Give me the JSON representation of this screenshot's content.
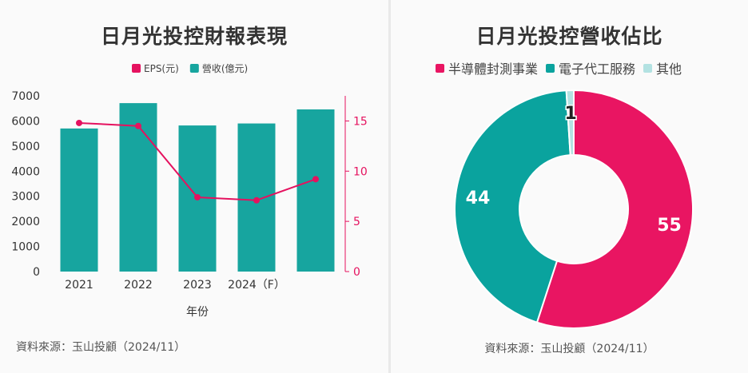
{
  "left_chart": {
    "title": "日月光投控財報表現",
    "source": "資料來源：玉山投顧（2024/11）"
  },
  "right_chart": {
    "title": "日月光投控營收佔比",
    "source": "資料來源：玉山投顧（2024/11）"
  },
  "colors": {
    "eps": "#e5125f",
    "revenue": "#17a59f",
    "pie": [
      "#e91562",
      "#0aa39e",
      "#b3e2e2"
    ]
  },
  "chart_data": [
    {
      "type": "bar",
      "title": "日月光投控財報表現",
      "categories": [
        "2021",
        "2022",
        "2023",
        "2024（F）",
        ""
      ],
      "xlabel": "年份",
      "ylabel": "",
      "ylim": [
        0,
        7000
      ],
      "y_ticks": [
        0,
        1000,
        2000,
        3000,
        4000,
        5000,
        6000,
        7000
      ],
      "y2lim": [
        0,
        17.5
      ],
      "y2_ticks": [
        0,
        5,
        10,
        15
      ],
      "legend_position": "top",
      "grid": false,
      "series": [
        {
          "name": "EPS(元)",
          "type": "line",
          "axis": "right",
          "values": [
            14.8,
            14.5,
            7.4,
            7.1,
            9.2
          ]
        },
        {
          "name": "營收(億元)",
          "type": "bar",
          "axis": "left",
          "values": [
            5700,
            6710,
            5820,
            5900,
            6460
          ]
        }
      ]
    },
    {
      "type": "pie",
      "title": "日月光投控營收佔比",
      "legend_position": "top",
      "labels": [
        "半導體封測事業",
        "電子代工服務",
        "其他"
      ],
      "values": [
        55,
        44,
        1
      ]
    }
  ]
}
